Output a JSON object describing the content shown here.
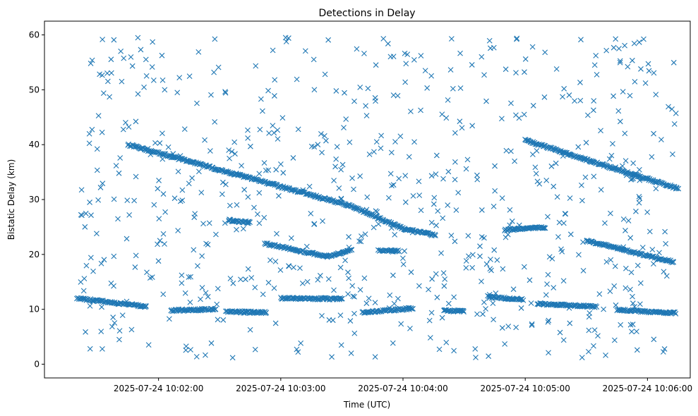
{
  "chart_data": {
    "type": "scatter",
    "title": "Detections in Delay",
    "xlabel": "Time (UTC)",
    "ylabel": "Bistatic Delay (km)",
    "marker": "x",
    "color": "#1f77b4",
    "grid": false,
    "xlim": [
      "2025-07-24 10:01:04",
      "2025-07-24 10:06:21"
    ],
    "ylim": [
      -2.5,
      62.5
    ],
    "x_ticks": [
      "2025-07-24 10:02:00",
      "2025-07-24 10:03:00",
      "2025-07-24 10:04:00",
      "2025-07-24 10:05:00",
      "2025-07-24 10:06:00"
    ],
    "y_ticks": [
      0,
      10,
      20,
      30,
      40,
      50,
      60
    ],
    "x_start": "2025-07-24 10:01:20",
    "x_end": "2025-07-24 10:06:15",
    "traces": [
      {
        "from": [
          "2025-07-24 10:01:45",
          40.0
        ],
        "to": [
          "2025-07-24 10:03:33",
          29.0
        ]
      },
      {
        "from": [
          "2025-07-24 10:03:33",
          29.0
        ],
        "to": [
          "2025-07-24 10:04:01",
          24.6
        ]
      },
      {
        "from": [
          "2025-07-24 10:04:01",
          24.6
        ],
        "to": [
          "2025-07-24 10:04:16",
          23.5
        ]
      },
      {
        "from": [
          "2025-07-24 10:05:00",
          40.8
        ],
        "to": [
          "2025-07-24 10:06:15",
          32.0
        ]
      },
      {
        "from": [
          "2025-07-24 10:02:35",
          26.2
        ],
        "to": [
          "2025-07-24 10:02:45",
          25.8
        ]
      },
      {
        "from": [
          "2025-07-24 10:02:52",
          22.0
        ],
        "to": [
          "2025-07-24 10:03:23",
          19.6
        ]
      },
      {
        "from": [
          "2025-07-24 10:03:23",
          19.6
        ],
        "to": [
          "2025-07-24 10:03:35",
          20.8
        ]
      },
      {
        "from": [
          "2025-07-24 10:03:48",
          20.7
        ],
        "to": [
          "2025-07-24 10:03:58",
          20.6
        ]
      },
      {
        "from": [
          "2025-07-24 10:04:50",
          24.5
        ],
        "to": [
          "2025-07-24 10:05:10",
          24.9
        ]
      },
      {
        "from": [
          "2025-07-24 10:05:30",
          22.5
        ],
        "to": [
          "2025-07-24 10:06:13",
          18.6
        ]
      },
      {
        "from": [
          "2025-07-24 10:01:20",
          12.0
        ],
        "to": [
          "2025-07-24 10:01:54",
          10.5
        ]
      },
      {
        "from": [
          "2025-07-24 10:02:06",
          9.8
        ],
        "to": [
          "2025-07-24 10:02:28",
          10.0
        ]
      },
      {
        "from": [
          "2025-07-24 10:02:33",
          9.6
        ],
        "to": [
          "2025-07-24 10:02:53",
          9.4
        ]
      },
      {
        "from": [
          "2025-07-24 10:03:00",
          12.0
        ],
        "to": [
          "2025-07-24 10:03:30",
          11.9
        ]
      },
      {
        "from": [
          "2025-07-24 10:03:40",
          9.4
        ],
        "to": [
          "2025-07-24 10:04:05",
          10.2
        ]
      },
      {
        "from": [
          "2025-07-24 10:04:20",
          9.8
        ],
        "to": [
          "2025-07-24 10:04:30",
          9.6
        ]
      },
      {
        "from": [
          "2025-07-24 10:04:42",
          12.2
        ],
        "to": [
          "2025-07-24 10:04:59",
          11.8
        ]
      },
      {
        "from": [
          "2025-07-24 10:05:06",
          11.0
        ],
        "to": [
          "2025-07-24 10:05:35",
          10.5
        ]
      },
      {
        "from": [
          "2025-07-24 10:05:45",
          9.9
        ],
        "to": [
          "2025-07-24 10:06:14",
          9.3
        ]
      }
    ],
    "noise_points": 700
  }
}
